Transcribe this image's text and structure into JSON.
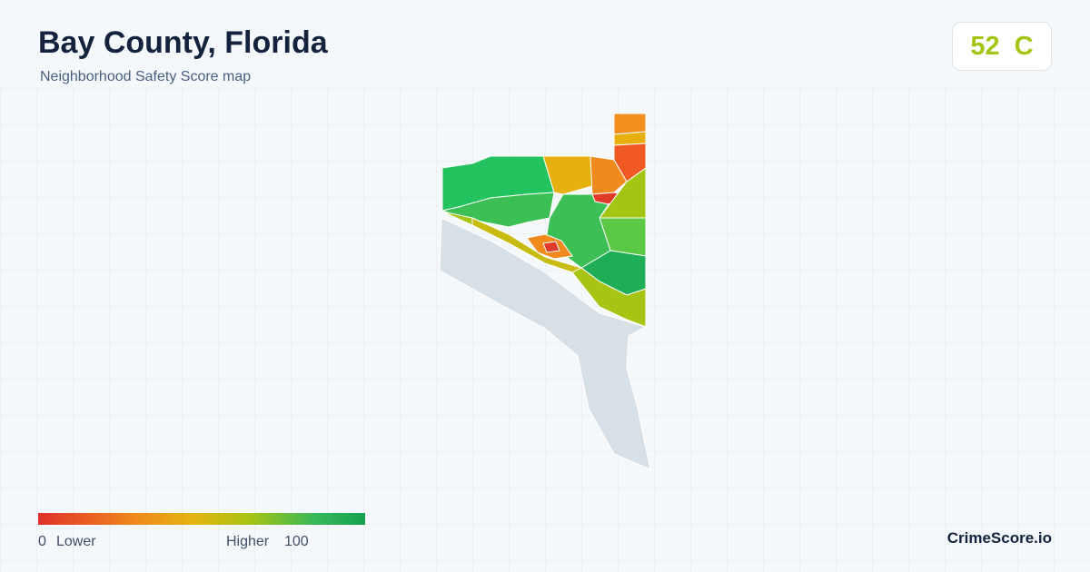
{
  "header": {
    "title": "Bay County, Florida",
    "subtitle": "Neighborhood Safety Score map"
  },
  "score": {
    "value": "52",
    "grade": "C"
  },
  "legend": {
    "min": "0",
    "min_label": "Lower",
    "max_label": "Higher",
    "max": "100"
  },
  "footer": {
    "brand": "CrimeScore.io"
  }
}
